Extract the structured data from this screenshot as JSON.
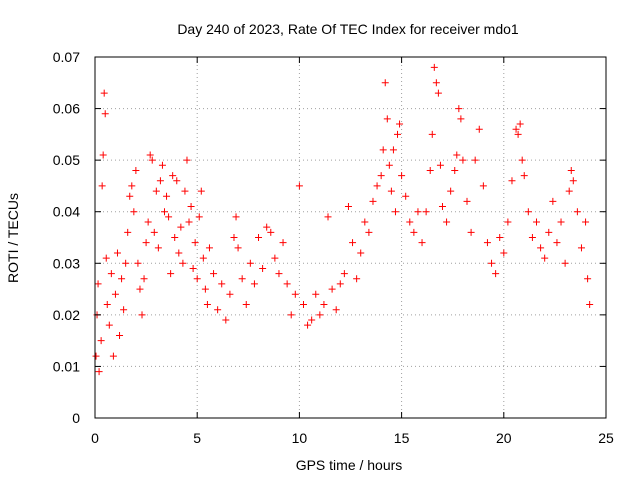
{
  "chart_data": {
    "type": "scatter",
    "title": "Day 240 of 2023, Rate Of TEC Index for receiver mdo1",
    "xlabel": "GPS time / hours",
    "ylabel": "ROTI / TECUs",
    "xlim": [
      0,
      25
    ],
    "ylim": [
      0,
      0.07
    ],
    "xticks": [
      0,
      5,
      10,
      15,
      20,
      25
    ],
    "yticks": [
      0,
      0.01,
      0.02,
      0.03,
      0.04,
      0.05,
      0.06,
      0.07
    ],
    "xtick_labels": [
      "0",
      "5",
      "10",
      "15",
      "20",
      "25"
    ],
    "ytick_labels": [
      "0",
      "0.01",
      "0.02",
      "0.03",
      "0.04",
      "0.05",
      "0.06",
      "0.07"
    ],
    "grid": true,
    "marker": "+",
    "color": "#ff0000",
    "series": [
      {
        "values": [
          [
            0.05,
            0.012
          ],
          [
            0.1,
            0.02
          ],
          [
            0.15,
            0.026
          ],
          [
            0.2,
            0.009
          ],
          [
            0.3,
            0.015
          ],
          [
            0.35,
            0.045
          ],
          [
            0.4,
            0.051
          ],
          [
            0.45,
            0.063
          ],
          [
            0.5,
            0.059
          ],
          [
            0.55,
            0.031
          ],
          [
            0.6,
            0.022
          ],
          [
            0.7,
            0.018
          ],
          [
            0.8,
            0.028
          ],
          [
            0.9,
            0.012
          ],
          [
            1.0,
            0.024
          ],
          [
            1.1,
            0.032
          ],
          [
            1.2,
            0.016
          ],
          [
            1.3,
            0.027
          ],
          [
            1.4,
            0.021
          ],
          [
            1.5,
            0.03
          ],
          [
            1.6,
            0.036
          ],
          [
            1.7,
            0.043
          ],
          [
            1.8,
            0.045
          ],
          [
            1.9,
            0.04
          ],
          [
            2.0,
            0.048
          ],
          [
            2.1,
            0.03
          ],
          [
            2.2,
            0.025
          ],
          [
            2.3,
            0.02
          ],
          [
            2.4,
            0.027
          ],
          [
            2.5,
            0.034
          ],
          [
            2.6,
            0.038
          ],
          [
            2.7,
            0.051
          ],
          [
            2.8,
            0.05
          ],
          [
            2.9,
            0.036
          ],
          [
            3.0,
            0.044
          ],
          [
            3.1,
            0.033
          ],
          [
            3.2,
            0.046
          ],
          [
            3.3,
            0.049
          ],
          [
            3.4,
            0.04
          ],
          [
            3.5,
            0.043
          ],
          [
            3.6,
            0.039
          ],
          [
            3.7,
            0.028
          ],
          [
            3.8,
            0.047
          ],
          [
            3.9,
            0.035
          ],
          [
            4.0,
            0.046
          ],
          [
            4.1,
            0.032
          ],
          [
            4.2,
            0.037
          ],
          [
            4.3,
            0.03
          ],
          [
            4.4,
            0.044
          ],
          [
            4.5,
            0.05
          ],
          [
            4.6,
            0.038
          ],
          [
            4.7,
            0.041
          ],
          [
            4.8,
            0.029
          ],
          [
            4.9,
            0.034
          ],
          [
            5.0,
            0.027
          ],
          [
            5.1,
            0.039
          ],
          [
            5.2,
            0.044
          ],
          [
            5.3,
            0.031
          ],
          [
            5.4,
            0.025
          ],
          [
            5.5,
            0.022
          ],
          [
            5.6,
            0.033
          ],
          [
            5.8,
            0.028
          ],
          [
            6.0,
            0.021
          ],
          [
            6.2,
            0.026
          ],
          [
            6.4,
            0.019
          ],
          [
            6.6,
            0.024
          ],
          [
            6.8,
            0.035
          ],
          [
            6.9,
            0.039
          ],
          [
            7.0,
            0.033
          ],
          [
            7.2,
            0.027
          ],
          [
            7.4,
            0.022
          ],
          [
            7.6,
            0.03
          ],
          [
            7.8,
            0.026
          ],
          [
            8.0,
            0.035
          ],
          [
            8.2,
            0.029
          ],
          [
            8.4,
            0.037
          ],
          [
            8.6,
            0.036
          ],
          [
            8.8,
            0.031
          ],
          [
            9.0,
            0.028
          ],
          [
            9.2,
            0.034
          ],
          [
            9.4,
            0.026
          ],
          [
            9.6,
            0.02
          ],
          [
            9.8,
            0.024
          ],
          [
            10.0,
            0.045
          ],
          [
            10.2,
            0.022
          ],
          [
            10.4,
            0.018
          ],
          [
            10.6,
            0.019
          ],
          [
            10.8,
            0.024
          ],
          [
            11.0,
            0.02
          ],
          [
            11.2,
            0.022
          ],
          [
            11.4,
            0.039
          ],
          [
            11.6,
            0.025
          ],
          [
            11.8,
            0.021
          ],
          [
            12.0,
            0.026
          ],
          [
            12.2,
            0.028
          ],
          [
            12.4,
            0.041
          ],
          [
            12.6,
            0.034
          ],
          [
            12.8,
            0.027
          ],
          [
            13.0,
            0.032
          ],
          [
            13.2,
            0.038
          ],
          [
            13.4,
            0.036
          ],
          [
            13.6,
            0.042
          ],
          [
            13.8,
            0.045
          ],
          [
            14.0,
            0.047
          ],
          [
            14.1,
            0.052
          ],
          [
            14.2,
            0.065
          ],
          [
            14.3,
            0.058
          ],
          [
            14.4,
            0.049
          ],
          [
            14.5,
            0.044
          ],
          [
            14.6,
            0.052
          ],
          [
            14.7,
            0.04
          ],
          [
            14.8,
            0.055
          ],
          [
            14.9,
            0.057
          ],
          [
            15.0,
            0.047
          ],
          [
            15.2,
            0.043
          ],
          [
            15.4,
            0.038
          ],
          [
            15.6,
            0.036
          ],
          [
            15.8,
            0.04
          ],
          [
            16.0,
            0.034
          ],
          [
            16.2,
            0.04
          ],
          [
            16.4,
            0.048
          ],
          [
            16.5,
            0.055
          ],
          [
            16.6,
            0.068
          ],
          [
            16.7,
            0.065
          ],
          [
            16.8,
            0.063
          ],
          [
            16.9,
            0.049
          ],
          [
            17.0,
            0.041
          ],
          [
            17.2,
            0.038
          ],
          [
            17.4,
            0.044
          ],
          [
            17.6,
            0.048
          ],
          [
            17.7,
            0.051
          ],
          [
            17.8,
            0.06
          ],
          [
            17.9,
            0.058
          ],
          [
            18.0,
            0.05
          ],
          [
            18.2,
            0.042
          ],
          [
            18.4,
            0.036
          ],
          [
            18.6,
            0.05
          ],
          [
            18.8,
            0.056
          ],
          [
            19.0,
            0.045
          ],
          [
            19.2,
            0.034
          ],
          [
            19.4,
            0.03
          ],
          [
            19.6,
            0.028
          ],
          [
            19.8,
            0.035
          ],
          [
            20.0,
            0.032
          ],
          [
            20.2,
            0.038
          ],
          [
            20.4,
            0.046
          ],
          [
            20.6,
            0.056
          ],
          [
            20.7,
            0.055
          ],
          [
            20.8,
            0.057
          ],
          [
            20.9,
            0.05
          ],
          [
            21.0,
            0.047
          ],
          [
            21.2,
            0.04
          ],
          [
            21.4,
            0.035
          ],
          [
            21.6,
            0.038
          ],
          [
            21.8,
            0.033
          ],
          [
            22.0,
            0.031
          ],
          [
            22.2,
            0.036
          ],
          [
            22.4,
            0.042
          ],
          [
            22.6,
            0.034
          ],
          [
            22.8,
            0.038
          ],
          [
            23.0,
            0.03
          ],
          [
            23.2,
            0.044
          ],
          [
            23.3,
            0.048
          ],
          [
            23.4,
            0.046
          ],
          [
            23.6,
            0.04
          ],
          [
            23.8,
            0.033
          ],
          [
            24.0,
            0.038
          ],
          [
            24.1,
            0.027
          ],
          [
            24.2,
            0.022
          ]
        ]
      }
    ]
  }
}
